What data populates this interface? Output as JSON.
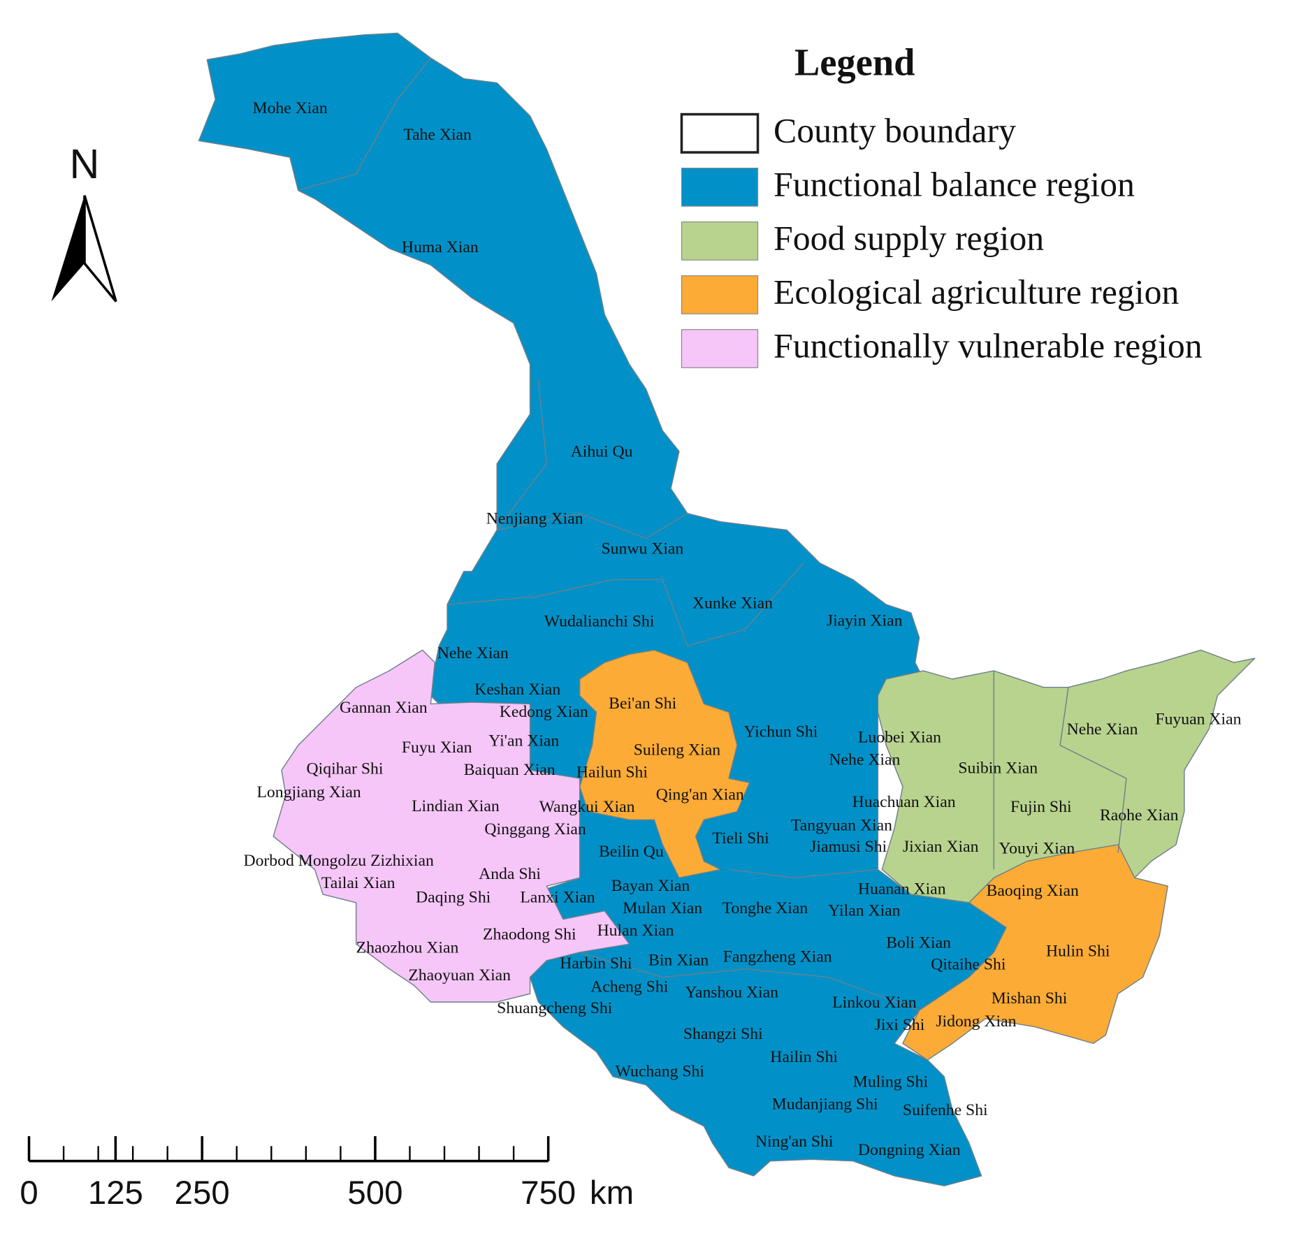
{
  "legend": {
    "title": "Legend",
    "items": [
      {
        "label": "County boundary",
        "color": "#ffffff"
      },
      {
        "label": "Functional balance region",
        "color": "#0191c8"
      },
      {
        "label": "Food supply region",
        "color": "#b8d38e"
      },
      {
        "label": "Ecological agriculture region",
        "color": "#fbab36"
      },
      {
        "label": "Functionally vulnerable region",
        "color": "#f6c6f8"
      }
    ]
  },
  "north_arrow": "N",
  "scale_bar": {
    "ticks": [
      0,
      125,
      250,
      500,
      750
    ],
    "lim": [
      0,
      750
    ],
    "unit": "km"
  },
  "county_labels": [
    "Mohe Xian",
    "Tahe Xian",
    "Huma Xian",
    "Aihui Qu",
    "Nenjiang Xian",
    "Sunwu Xian",
    "Xunke Xian",
    "Jiayin Xian",
    "Wudalianchi Shi",
    "Nehe Xian",
    "Keshan Xian",
    "Gannan Xian",
    "Kedong Xian",
    "Bei'an Shi",
    "Yichun Shi",
    "Luobei Xian",
    "Nehe Xian",
    "Fuyuan Xian",
    "Fuyu Xian",
    "Yi'an Xian",
    "Suileng Xian",
    "Nehe Xian",
    "Suibin Xian",
    "Qiqihar Shi",
    "Baiquan Xian",
    "Hailun Shi",
    "Longjiang Xian",
    "Qing'an Xian",
    "Huachuan Xian",
    "Fujin Shi",
    "Raohe Xian",
    "Lindian Xian",
    "Wangkui Xian",
    "Qinggang Xian",
    "Tangyuan Xian",
    "Tieli Shi",
    "Jiamusi Shi",
    "Jixian Xian",
    "Youyi Xian",
    "Beilin Qu",
    "Dorbod Mongolzu Zizhixian",
    "Anda Shi",
    "Tailai Xian",
    "Bayan Xian",
    "Huanan Xian",
    "Baoqing Xian",
    "Daqing Shi",
    "Lanxi Xian",
    "Mulan Xian",
    "Tonghe Xian",
    "Yilan Xian",
    "Hulan Xian",
    "Zhaodong Shi",
    "Boli Xian",
    "Zhaozhou Xian",
    "Hulin Shi",
    "Harbin Shi",
    "Bin Xian",
    "Fangzheng Xian",
    "Qitaihe Shi",
    "Zhaoyuan Xian",
    "Acheng Shi",
    "Yanshou Xian",
    "Mishan Shi",
    "Linkou Xian",
    "Shuangcheng Shi",
    "Jixi Shi",
    "Jidong Xian",
    "Shangzi Shi",
    "Hailin Shi",
    "Wuchang Shi",
    "Muling Shi",
    "Mudanjiang Shi",
    "Suifenhe Shi",
    "Ning'an Shi",
    "Dongning Xian"
  ]
}
